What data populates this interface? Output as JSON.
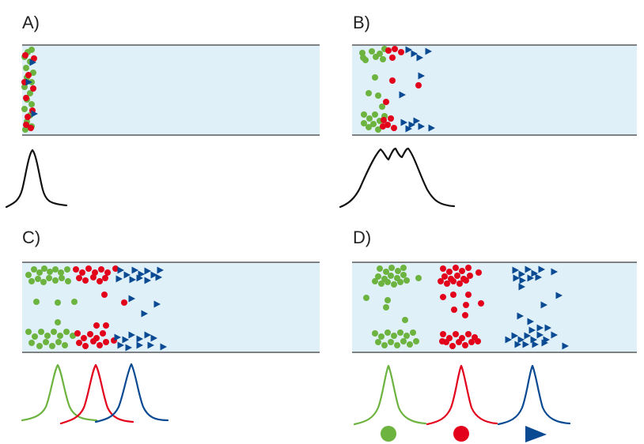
{
  "colors": {
    "channel_fill": "#dff0f9",
    "channel_line": "#3a3a3a",
    "green": "#6db33f",
    "red": "#e2001a",
    "blue": "#0a4a93",
    "baseline": "#111111"
  },
  "panels": [
    {
      "id": "A",
      "label": "A)"
    },
    {
      "id": "B",
      "label": "B)"
    },
    {
      "id": "C",
      "label": "C)"
    },
    {
      "id": "D",
      "label": "D)"
    }
  ],
  "legend": {
    "items": [
      {
        "shape": "circle",
        "color_key": "green",
        "icon": "green-circle-icon"
      },
      {
        "shape": "circle",
        "color_key": "red",
        "icon": "red-circle-icon"
      },
      {
        "shape": "triangle",
        "color_key": "blue",
        "icon": "blue-triangle-icon"
      }
    ]
  }
}
